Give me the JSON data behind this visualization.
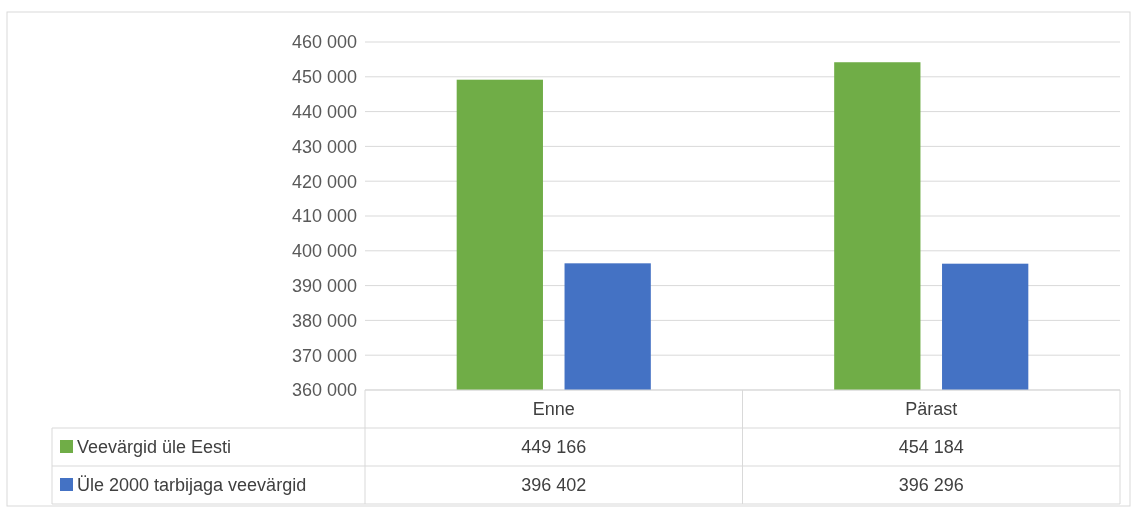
{
  "chart_data": {
    "type": "bar",
    "categories": [
      "Enne",
      "Pärast"
    ],
    "series": [
      {
        "name": "Veevärgid üle Eesti",
        "color": "#70ad47",
        "values": [
          449166,
          454184
        ],
        "value_labels": [
          "449 166",
          "454 184"
        ]
      },
      {
        "name": "Üle 2000 tarbijaga veevärgid",
        "color": "#4472c4",
        "values": [
          396402,
          396296
        ],
        "value_labels": [
          "396 402",
          "396 296"
        ]
      }
    ],
    "ylim": [
      360000,
      460000
    ],
    "yticks": [
      {
        "value": 360000,
        "label": "360 000"
      },
      {
        "value": 370000,
        "label": "370 000"
      },
      {
        "value": 380000,
        "label": "380 000"
      },
      {
        "value": 390000,
        "label": "390 000"
      },
      {
        "value": 400000,
        "label": "400 000"
      },
      {
        "value": 410000,
        "label": "410 000"
      },
      {
        "value": 420000,
        "label": "420 000"
      },
      {
        "value": 430000,
        "label": "430 000"
      },
      {
        "value": 440000,
        "label": "440 000"
      },
      {
        "value": 450000,
        "label": "450 000"
      },
      {
        "value": 460000,
        "label": "460 000"
      }
    ],
    "grid": "y",
    "legend": "bottom"
  }
}
